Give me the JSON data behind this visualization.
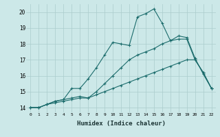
{
  "xlabel": "Humidex (Indice chaleur)",
  "xlim": [
    -0.5,
    22.5
  ],
  "ylim": [
    13.7,
    20.5
  ],
  "yticks": [
    14,
    15,
    16,
    17,
    18,
    19,
    20
  ],
  "xticks": [
    0,
    1,
    2,
    3,
    4,
    5,
    6,
    7,
    8,
    9,
    10,
    11,
    12,
    13,
    14,
    15,
    16,
    17,
    18,
    19,
    20,
    21,
    22
  ],
  "bg_color": "#cce8e8",
  "grid_color": "#aacccc",
  "line_color": "#1a6b6b",
  "series": [
    [
      14.0,
      14.0,
      14.2,
      14.3,
      14.4,
      14.5,
      14.6,
      14.6,
      14.8,
      15.0,
      15.2,
      15.4,
      15.6,
      15.8,
      16.0,
      16.2,
      16.4,
      16.6,
      16.8,
      17.0,
      17.0,
      16.2,
      15.2
    ],
    [
      14.0,
      14.0,
      14.2,
      14.4,
      14.5,
      14.6,
      14.7,
      14.6,
      15.0,
      15.5,
      16.0,
      16.5,
      17.0,
      17.3,
      17.5,
      17.7,
      18.0,
      18.2,
      18.3,
      18.3,
      17.0,
      16.2,
      15.2
    ],
    [
      14.0,
      14.0,
      14.2,
      14.4,
      14.5,
      15.2,
      15.2,
      15.8,
      16.5,
      17.3,
      18.1,
      18.0,
      17.9,
      19.7,
      19.9,
      20.2,
      19.3,
      18.2,
      18.5,
      18.4,
      17.1,
      16.1,
      15.2
    ]
  ]
}
